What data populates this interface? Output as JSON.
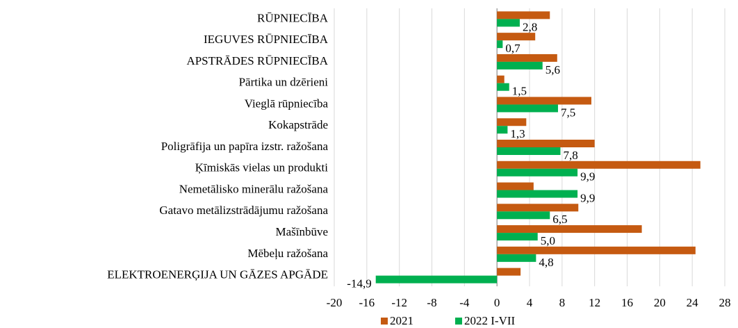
{
  "chart_data": {
    "type": "bar",
    "orientation": "horizontal",
    "categories": [
      "RŪPNIECĪBA",
      "IEGUVES RŪPNIECĪBA",
      "APSTRĀDES RŪPNIECĪBA",
      "Pārtika un dzērieni",
      "Vieglā rūpniecība",
      "Kokapstrāde",
      "Poligrāfija un papīra izstr. ražošana",
      "Ķīmiskās vielas un produkti",
      "Nemetālisko minerālu ražošana",
      "Gatavo metālizstrādājumu ražošana",
      "Mašīnbūve",
      "Mēbeļu ražošana",
      "ELEKTROENERĢIJA UN GĀZES APGĀDE"
    ],
    "series": [
      {
        "name": "2021",
        "color": "#c55a11",
        "values": [
          6.5,
          4.7,
          7.4,
          0.9,
          11.6,
          3.6,
          12.0,
          25.0,
          4.5,
          10.0,
          17.8,
          24.4,
          2.9
        ]
      },
      {
        "name": "2022 I-VII",
        "color": "#00b050",
        "values": [
          2.8,
          0.7,
          5.6,
          1.5,
          7.5,
          1.3,
          7.8,
          9.9,
          9.9,
          6.5,
          5.0,
          4.8,
          -14.9
        ],
        "value_labels": [
          "2,8",
          "0,7",
          "5,6",
          "1,5",
          "7,5",
          "1,3",
          "7,8",
          "9,9",
          "9,9",
          "6,5",
          "5,0",
          "4,8",
          "-14,9"
        ]
      }
    ],
    "xlim": [
      -20,
      28
    ],
    "xticks": [
      -20,
      -16,
      -12,
      -8,
      -4,
      0,
      4,
      8,
      12,
      16,
      20,
      24,
      28
    ],
    "grid": true,
    "legend": "bottom"
  }
}
